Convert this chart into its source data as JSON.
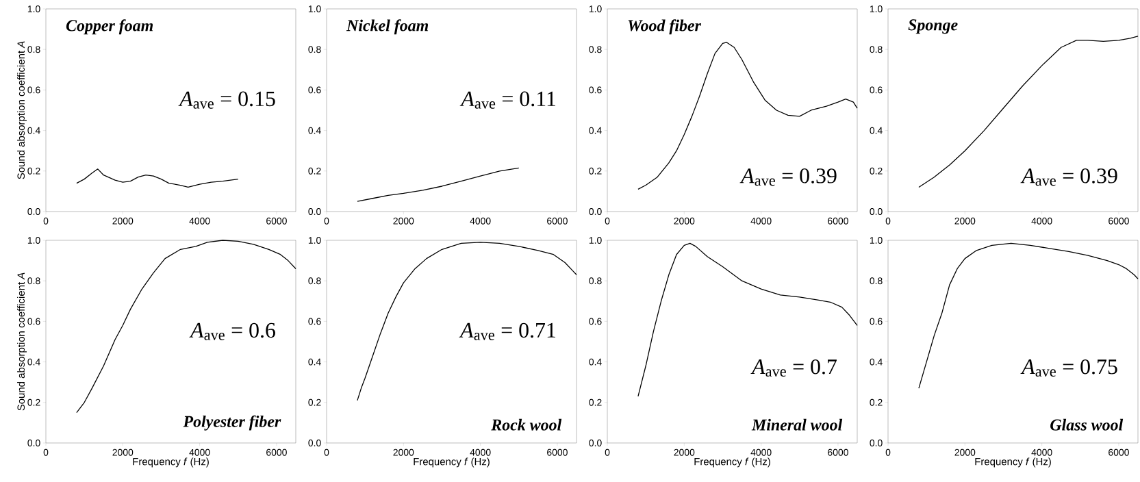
{
  "chart_data": [
    {
      "type": "line",
      "title": "Copper foam",
      "ylabel": "Sound absorption coefficient *A*",
      "annotations": [
        "*A*$_{ave}$ = 0.15"
      ],
      "color": "#000000",
      "xlim": [
        0,
        6500
      ],
      "ylim": [
        0,
        1
      ],
      "xticks": [
        0,
        2000,
        4000,
        6000
      ],
      "yticks": [
        {
          "value": 0,
          "label": "0.0"
        },
        {
          "value": 0.2,
          "label": "0.2"
        },
        {
          "value": 0.4,
          "label": "0.4"
        },
        {
          "value": 0.6,
          "label": "0.6"
        },
        {
          "value": 0.8,
          "label": "0.8"
        },
        {
          "value": 1,
          "label": "1.0"
        }
      ],
      "x": [
        800,
        1000,
        1200,
        1350,
        1500,
        1800,
        2000,
        2200,
        2400,
        2600,
        2800,
        3000,
        3200,
        3500,
        3700,
        4000,
        4300,
        4600,
        5000
      ],
      "values": [
        0.14,
        0.16,
        0.19,
        0.21,
        0.18,
        0.155,
        0.145,
        0.15,
        0.17,
        0.18,
        0.175,
        0.16,
        0.14,
        0.13,
        0.12,
        0.135,
        0.145,
        0.15,
        0.16
      ]
    },
    {
      "type": "line",
      "title": "Nickel foam",
      "annotations": [
        "*A*$_{ave}$ = 0.11"
      ],
      "color": "#000000",
      "xlim": [
        0,
        6500
      ],
      "ylim": [
        0,
        1
      ],
      "xticks": [
        0,
        2000,
        4000,
        6000
      ],
      "yticks": [
        {
          "value": 0,
          "label": "0.0"
        },
        {
          "value": 0.2,
          "label": "0.2"
        },
        {
          "value": 0.4,
          "label": "0.4"
        },
        {
          "value": 0.6,
          "label": "0.6"
        },
        {
          "value": 0.8,
          "label": "0.8"
        },
        {
          "value": 1,
          "label": "1.0"
        }
      ],
      "x": [
        800,
        1200,
        1600,
        2000,
        2500,
        3000,
        3500,
        4000,
        4500,
        5000
      ],
      "values": [
        0.05,
        0.065,
        0.08,
        0.09,
        0.105,
        0.125,
        0.15,
        0.175,
        0.2,
        0.215
      ]
    },
    {
      "type": "line",
      "title": "Wood fiber",
      "annotations": [
        "*A*$_{ave}$ = 0.39"
      ],
      "color": "#000000",
      "xlim": [
        0,
        6500
      ],
      "ylim": [
        0,
        1
      ],
      "xticks": [
        0,
        2000,
        4000,
        6000
      ],
      "yticks": [
        {
          "value": 0,
          "label": "0.0"
        },
        {
          "value": 0.2,
          "label": "0.2"
        },
        {
          "value": 0.4,
          "label": "0.4"
        },
        {
          "value": 0.6,
          "label": "0.6"
        },
        {
          "value": 0.8,
          "label": "0.8"
        },
        {
          "value": 1,
          "label": "1.0"
        }
      ],
      "x": [
        800,
        1000,
        1300,
        1600,
        1800,
        2000,
        2200,
        2400,
        2600,
        2800,
        3000,
        3100,
        3300,
        3500,
        3800,
        4100,
        4400,
        4700,
        5000,
        5300,
        5700,
        6000,
        6200,
        6400,
        6500
      ],
      "values": [
        0.11,
        0.13,
        0.17,
        0.24,
        0.3,
        0.38,
        0.47,
        0.57,
        0.68,
        0.78,
        0.83,
        0.835,
        0.81,
        0.75,
        0.64,
        0.55,
        0.5,
        0.475,
        0.47,
        0.5,
        0.52,
        0.54,
        0.555,
        0.54,
        0.51
      ]
    },
    {
      "type": "line",
      "title": "Sponge",
      "annotations": [
        "*A*$_{ave}$ = 0.39"
      ],
      "color": "#000000",
      "xlim": [
        0,
        6500
      ],
      "ylim": [
        0,
        1
      ],
      "xticks": [
        0,
        2000,
        4000,
        6000
      ],
      "yticks": [
        {
          "value": 0,
          "label": "0.0"
        },
        {
          "value": 0.2,
          "label": "0.2"
        },
        {
          "value": 0.4,
          "label": "0.4"
        },
        {
          "value": 0.6,
          "label": "0.6"
        },
        {
          "value": 0.8,
          "label": "0.8"
        },
        {
          "value": 1,
          "label": "1.0"
        }
      ],
      "x": [
        800,
        1200,
        1600,
        2000,
        2500,
        3000,
        3500,
        4000,
        4500,
        4900,
        5200,
        5600,
        6000,
        6300,
        6500
      ],
      "values": [
        0.12,
        0.17,
        0.23,
        0.3,
        0.4,
        0.51,
        0.62,
        0.72,
        0.81,
        0.845,
        0.845,
        0.84,
        0.845,
        0.855,
        0.865
      ]
    },
    {
      "type": "line",
      "title": "Polyester fiber",
      "xlabel": "Frequency *f* (Hz)",
      "ylabel": "Sound absorption coefficient *A*",
      "annotations": [
        "*A*$_{ave}$ = 0.6"
      ],
      "color": "#000000",
      "xlim": [
        0,
        6500
      ],
      "ylim": [
        0,
        1
      ],
      "xticks": [
        0,
        2000,
        4000,
        6000
      ],
      "yticks": [
        {
          "value": 0,
          "label": "0.0"
        },
        {
          "value": 0.2,
          "label": "0.2"
        },
        {
          "value": 0.4,
          "label": "0.4"
        },
        {
          "value": 0.6,
          "label": "0.6"
        },
        {
          "value": 0.8,
          "label": "0.8"
        },
        {
          "value": 1,
          "label": "1.0"
        }
      ],
      "x": [
        800,
        1000,
        1200,
        1500,
        1800,
        2000,
        2200,
        2500,
        2800,
        3100,
        3500,
        3900,
        4200,
        4600,
        5000,
        5400,
        5800,
        6100,
        6300,
        6500
      ],
      "values": [
        0.15,
        0.2,
        0.27,
        0.38,
        0.51,
        0.58,
        0.66,
        0.76,
        0.84,
        0.91,
        0.955,
        0.97,
        0.99,
        1.0,
        0.995,
        0.98,
        0.955,
        0.93,
        0.9,
        0.86
      ]
    },
    {
      "type": "line",
      "title": "Rock wool",
      "xlabel": "Frequency *f* (Hz)",
      "annotations": [
        "*A*$_{ave}$ = 0.71"
      ],
      "color": "#000000",
      "xlim": [
        0,
        6500
      ],
      "ylim": [
        0,
        1
      ],
      "xticks": [
        0,
        2000,
        4000,
        6000
      ],
      "yticks": [
        {
          "value": 0,
          "label": "0.0"
        },
        {
          "value": 0.2,
          "label": "0.2"
        },
        {
          "value": 0.4,
          "label": "0.4"
        },
        {
          "value": 0.6,
          "label": "0.6"
        },
        {
          "value": 0.8,
          "label": "0.8"
        },
        {
          "value": 1,
          "label": "1.0"
        }
      ],
      "x": [
        800,
        900,
        1000,
        1200,
        1400,
        1600,
        1800,
        2000,
        2300,
        2600,
        3000,
        3500,
        4000,
        4500,
        5000,
        5500,
        5900,
        6200,
        6400,
        6500
      ],
      "values": [
        0.21,
        0.27,
        0.32,
        0.43,
        0.54,
        0.64,
        0.72,
        0.79,
        0.86,
        0.91,
        0.955,
        0.985,
        0.99,
        0.985,
        0.97,
        0.95,
        0.93,
        0.89,
        0.85,
        0.83
      ]
    },
    {
      "type": "line",
      "title": "Mineral wool",
      "xlabel": "Frequency *f* (Hz)",
      "annotations": [
        "*A*$_{ave}$ = 0.7"
      ],
      "color": "#000000",
      "xlim": [
        0,
        6500
      ],
      "ylim": [
        0,
        1
      ],
      "xticks": [
        0,
        2000,
        4000,
        6000
      ],
      "yticks": [
        {
          "value": 0,
          "label": "0.0"
        },
        {
          "value": 0.2,
          "label": "0.2"
        },
        {
          "value": 0.4,
          "label": "0.4"
        },
        {
          "value": 0.6,
          "label": "0.6"
        },
        {
          "value": 0.8,
          "label": "0.8"
        },
        {
          "value": 1,
          "label": "1.0"
        }
      ],
      "x": [
        800,
        1000,
        1200,
        1400,
        1600,
        1800,
        2000,
        2150,
        2300,
        2600,
        3000,
        3500,
        4000,
        4500,
        5000,
        5500,
        5800,
        6100,
        6300,
        6500
      ],
      "values": [
        0.23,
        0.38,
        0.55,
        0.7,
        0.83,
        0.93,
        0.975,
        0.985,
        0.97,
        0.92,
        0.87,
        0.8,
        0.76,
        0.73,
        0.72,
        0.705,
        0.695,
        0.67,
        0.63,
        0.58
      ]
    },
    {
      "type": "line",
      "title": "Glass wool",
      "xlabel": "Frequency *f* (Hz)",
      "annotations": [
        "*A*$_{ave}$ = 0.75"
      ],
      "color": "#000000",
      "xlim": [
        0,
        6500
      ],
      "ylim": [
        0,
        1
      ],
      "xticks": [
        0,
        2000,
        4000,
        6000
      ],
      "yticks": [
        {
          "value": 0,
          "label": "0.0"
        },
        {
          "value": 0.2,
          "label": "0.2"
        },
        {
          "value": 0.4,
          "label": "0.4"
        },
        {
          "value": 0.6,
          "label": "0.6"
        },
        {
          "value": 0.8,
          "label": "0.8"
        },
        {
          "value": 1,
          "label": "1.0"
        }
      ],
      "x": [
        800,
        1000,
        1200,
        1400,
        1600,
        1800,
        2000,
        2300,
        2700,
        3200,
        3700,
        4200,
        4700,
        5200,
        5700,
        6000,
        6200,
        6400,
        6500
      ],
      "values": [
        0.27,
        0.4,
        0.53,
        0.64,
        0.78,
        0.86,
        0.91,
        0.95,
        0.975,
        0.985,
        0.975,
        0.96,
        0.945,
        0.925,
        0.9,
        0.88,
        0.86,
        0.83,
        0.81
      ]
    }
  ]
}
